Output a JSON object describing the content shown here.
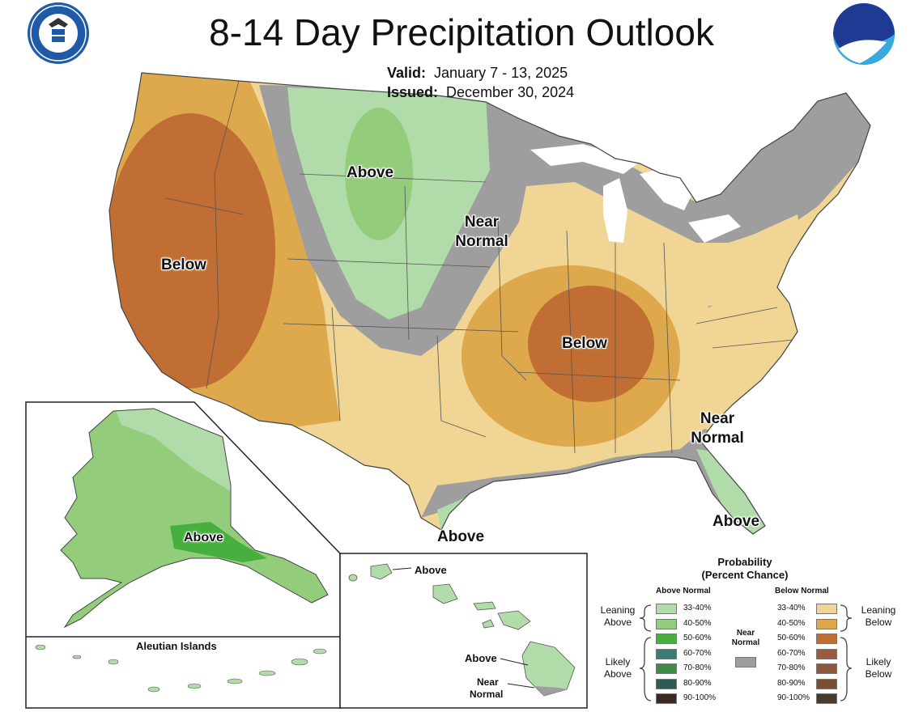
{
  "header": {
    "title": "8-14 Day Precipitation Outlook",
    "valid_label": "Valid:",
    "valid_value": "January 7 - 13, 2025",
    "issued_label": "Issued:",
    "issued_value": "December 30, 2024",
    "left_seal_text": "DEPARTMENT OF COMMERCE · UNITED STATES OF AMERICA",
    "right_logo_text": "NOAA"
  },
  "map_labels": {
    "northern_plains": "Above",
    "west": "Below",
    "midwest_near_normal_1": "Near",
    "midwest_near_normal_2": "Normal",
    "mid_south": "Below",
    "southeast_near_normal_1": "Near",
    "southeast_near_normal_2": "Normal",
    "texas_coast": "Above",
    "florida": "Above"
  },
  "alaska": {
    "label": "Above",
    "aleutians_title": "Aleutian Islands"
  },
  "hawaii": {
    "label_north": "Above",
    "label_big_island": "Above",
    "label_near_normal_1": "Near",
    "label_near_normal_2": "Normal"
  },
  "legend": {
    "title_1": "Probability",
    "title_2": "(Percent Chance)",
    "above_header": "Above Normal",
    "below_header": "Below Normal",
    "near_normal_1": "Near",
    "near_normal_2": "Normal",
    "leaning_above_1": "Leaning",
    "leaning_above_2": "Above",
    "likely_above_1": "Likely",
    "likely_above_2": "Above",
    "leaning_below_1": "Leaning",
    "leaning_below_2": "Below",
    "likely_below_1": "Likely",
    "likely_below_2": "Below",
    "above_bins": [
      {
        "label": "33-40%",
        "color": "#b2dbaa"
      },
      {
        "label": "40-50%",
        "color": "#93cd7c"
      },
      {
        "label": "50-60%",
        "color": "#46af3e"
      },
      {
        "label": "60-70%",
        "color": "#3a7c74"
      },
      {
        "label": "70-80%",
        "color": "#3f8a46"
      },
      {
        "label": "80-90%",
        "color": "#2f5a55"
      },
      {
        "label": "90-100%",
        "color": "#3a2a22"
      }
    ],
    "below_bins": [
      {
        "label": "33-40%",
        "color": "#f1d595"
      },
      {
        "label": "40-50%",
        "color": "#dea84c"
      },
      {
        "label": "50-60%",
        "color": "#c06e33"
      },
      {
        "label": "60-70%",
        "color": "#9b5a3c"
      },
      {
        "label": "70-80%",
        "color": "#8c5a3a"
      },
      {
        "label": "80-90%",
        "color": "#7a4e33"
      },
      {
        "label": "90-100%",
        "color": "#4a3a2e"
      }
    ],
    "near_color": "#9e9e9e"
  }
}
